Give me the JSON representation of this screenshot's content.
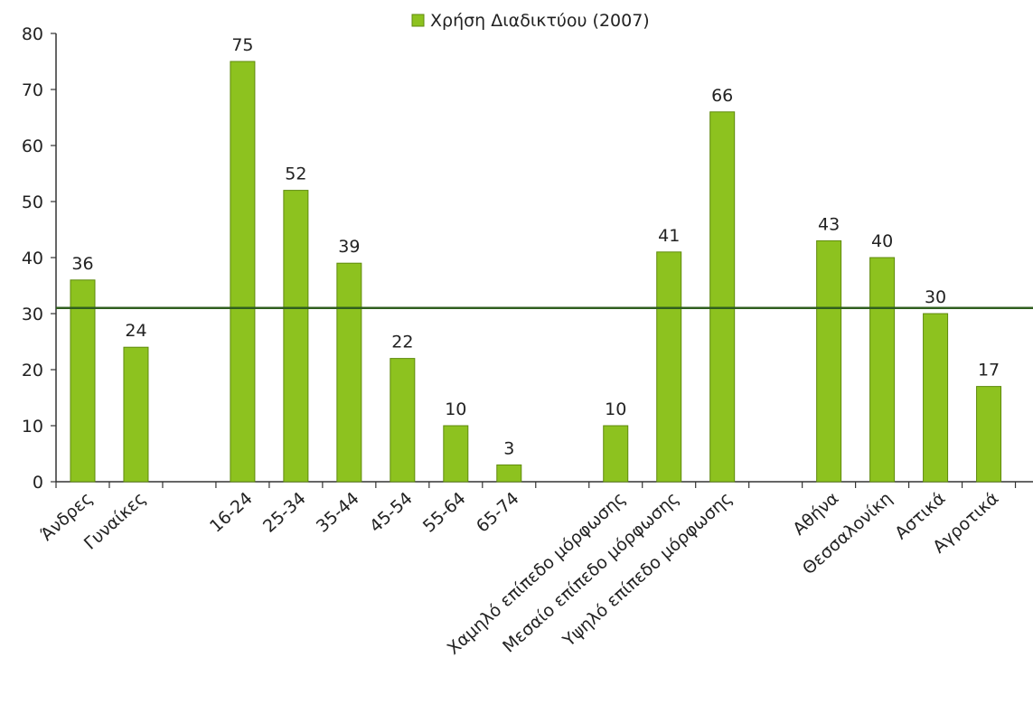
{
  "chart_data": {
    "type": "bar",
    "title": "",
    "xlabel": "",
    "ylabel": "",
    "ylim": [
      0,
      80
    ],
    "yticks": [
      0,
      10,
      20,
      30,
      40,
      50,
      60,
      70,
      80
    ],
    "categories": [
      "Άνδρες",
      "Γυναίκες",
      "",
      "16-24",
      "25-34",
      "35-44",
      "45-54",
      "55-64",
      "65-74",
      "",
      "Χαμηλό επίπεδο μόρφωσης",
      "Μεσαίο επίπεδο μόρφωσης",
      "Υψηλό επίπεδο μόρφωσης",
      "",
      "Αθήνα",
      "Θεσσαλονίκη",
      "Αστικά",
      "Αγροτικά"
    ],
    "series": [
      {
        "name": "Χρήση Διαδικτύου (2007)",
        "values": [
          36,
          24,
          null,
          75,
          52,
          39,
          22,
          10,
          3,
          null,
          10,
          41,
          66,
          null,
          43,
          40,
          30,
          17
        ],
        "labels": [
          "36",
          "24",
          "",
          "75",
          "52",
          "39",
          "22",
          "10",
          "3",
          "",
          "10",
          "41",
          "66",
          "",
          "43",
          "40",
          "30",
          "17"
        ]
      }
    ],
    "reference_line": 31,
    "legend_position": "top",
    "grid": false,
    "colors": {
      "bar": "#8dc21f",
      "bar_border": "#5f8a0c",
      "line": "#2f5e1e",
      "axis": "#333333"
    }
  }
}
